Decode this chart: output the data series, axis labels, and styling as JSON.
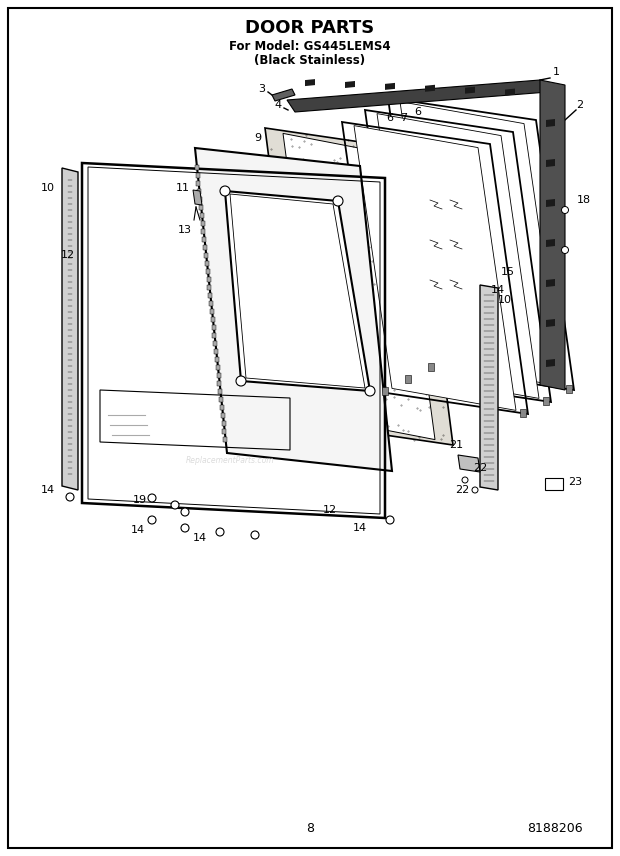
{
  "title": "DOOR PARTS",
  "subtitle_line1": "For Model: GS445LEMS4",
  "subtitle_line2": "(Black Stainless)",
  "page_number": "8",
  "doc_number": "8188206",
  "background_color": "#ffffff",
  "border_color": "#000000",
  "title_fontsize": 13,
  "subtitle_fontsize": 8,
  "footer_fontsize": 9,
  "fig_width": 6.2,
  "fig_height": 8.56,
  "dpi": 100
}
